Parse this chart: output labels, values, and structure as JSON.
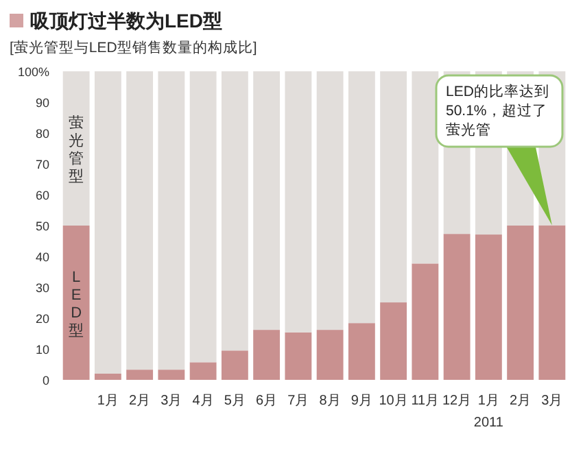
{
  "chart_data": {
    "type": "bar",
    "title": "吸顶灯过半数为LED型",
    "subtitle": "[萤光管型与LED型销售数量的构成比]",
    "categories": [
      null,
      "1月",
      "2月",
      "3月",
      "4月",
      "5月",
      "6月",
      "7月",
      "8月",
      "9月",
      "10月",
      "11月",
      "12月",
      "1月",
      "2月",
      "3月"
    ],
    "stacked": true,
    "series": [
      {
        "name": "LED型",
        "color": "#c99190",
        "values": [
          50,
          2,
          3.3,
          3.3,
          5.7,
          9.5,
          16.2,
          15.4,
          16.2,
          18.4,
          25.1,
          37.7,
          47.3,
          47.1,
          50,
          50.1
        ]
      },
      {
        "name": "萤光管型",
        "color": "#e2dedb",
        "values": [
          50,
          98,
          96.7,
          96.7,
          94.3,
          90.5,
          83.8,
          84.6,
          83.8,
          81.6,
          74.9,
          62.3,
          52.7,
          52.9,
          50,
          49.9
        ]
      }
    ],
    "ylim": [
      0,
      100
    ],
    "yticks": [
      0,
      10,
      20,
      30,
      40,
      50,
      60,
      70,
      80,
      90,
      {
        "value": 100,
        "label": "100%"
      }
    ],
    "annotations": [
      "LED的比率达到50.1%，超过了萤光管",
      "2011"
    ]
  }
}
